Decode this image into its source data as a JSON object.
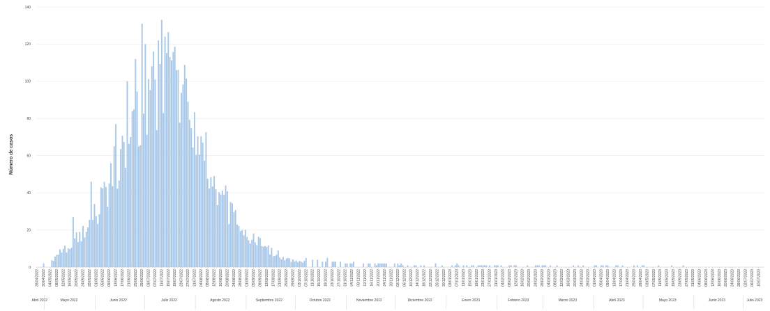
{
  "chart_data": {
    "type": "bar",
    "title": "",
    "xlabel": "",
    "ylabel": "Número de casos",
    "ylim": [
      0,
      140
    ],
    "yticks": [
      0,
      20,
      40,
      60,
      80,
      100,
      120,
      140
    ],
    "grid": true,
    "legend": "none",
    "bar_color": "#a9c8e8",
    "x_start": "2022-04-26",
    "x_end": "2023-07-13",
    "date_tick_labels": [
      "26/04/2022",
      "30/04/2022",
      "04/05/2022",
      "08/05/2022",
      "12/05/2022",
      "16/05/2022",
      "20/05/2022",
      "24/05/2022",
      "28/05/2022",
      "01/06/2022",
      "05/06/2022",
      "09/06/2022",
      "13/06/2022",
      "17/06/2022",
      "21/06/2022",
      "25/06/2022",
      "29/06/2022",
      "03/07/2022",
      "07/07/2022",
      "11/07/2022",
      "15/07/2022",
      "19/07/2022",
      "23/07/2022",
      "27/07/2022",
      "31/07/2022",
      "04/08/2022",
      "08/08/2022",
      "12/08/2022",
      "16/08/2022",
      "20/08/2022",
      "24/08/2022",
      "28/08/2022",
      "01/09/2022",
      "05/09/2022",
      "09/09/2022",
      "13/09/2022",
      "17/09/2022",
      "21/09/2022",
      "25/09/2022",
      "29/09/2022",
      "03/10/2022",
      "07/10/2022",
      "11/10/2022",
      "15/10/2022",
      "19/10/2022",
      "23/10/2022",
      "27/10/2022",
      "31/10/2022",
      "04/11/2022",
      "08/11/2022",
      "12/11/2022",
      "16/11/2022",
      "20/11/2022",
      "24/11/2022",
      "28/11/2022",
      "02/12/2022",
      "06/12/2022",
      "10/12/2022",
      "14/12/2022",
      "18/12/2022",
      "22/12/2022",
      "26/12/2022",
      "30/12/2022",
      "03/01/2023",
      "07/01/2023",
      "11/01/2023",
      "15/01/2023",
      "19/01/2023",
      "23/01/2023",
      "27/01/2023",
      "31/01/2023",
      "04/02/2023",
      "08/02/2023",
      "12/02/2023",
      "16/02/2023",
      "20/02/2023",
      "24/02/2023",
      "28/02/2023",
      "04/03/2023",
      "08/03/2023",
      "12/03/2023",
      "16/03/2023",
      "20/03/2023",
      "24/03/2023",
      "28/03/2023",
      "01/04/2023",
      "05/04/2023",
      "09/04/2023",
      "13/04/2023",
      "17/04/2023",
      "21/04/2023",
      "25/04/2023",
      "29/04/2023",
      "03/05/2023",
      "07/05/2023",
      "11/05/2023",
      "15/05/2023",
      "19/05/2023",
      "23/05/2023",
      "27/05/2023",
      "31/05/2023",
      "04/06/2023",
      "08/06/2023",
      "12/06/2023",
      "16/06/2023",
      "20/06/2023",
      "24/06/2023",
      "28/06/2023",
      "02/07/2023",
      "06/07/2023",
      "10/07/2023"
    ],
    "month_labels": [
      {
        "label": "Abril 2022",
        "date": "2022-04-28"
      },
      {
        "label": "Mayo 2022",
        "date": "2022-05-16"
      },
      {
        "label": "Junio 2022",
        "date": "2022-06-15"
      },
      {
        "label": "Julio 2022",
        "date": "2022-07-16"
      },
      {
        "label": "Agosto 2022",
        "date": "2022-08-16"
      },
      {
        "label": "Septiembre 2022",
        "date": "2022-09-15"
      },
      {
        "label": "Octubre 2022",
        "date": "2022-10-16"
      },
      {
        "label": "Noviembre 2022",
        "date": "2022-11-15"
      },
      {
        "label": "Diciembre 2022",
        "date": "2022-12-16"
      },
      {
        "label": "Enero 2023",
        "date": "2023-01-16"
      },
      {
        "label": "Febrero 2023",
        "date": "2023-02-14"
      },
      {
        "label": "Marzo 2023",
        "date": "2023-03-16"
      },
      {
        "label": "Abril 2023",
        "date": "2023-04-15"
      },
      {
        "label": "Mayo 2023",
        "date": "2023-05-16"
      },
      {
        "label": "Junio 2023",
        "date": "2023-06-15"
      },
      {
        "label": "Julio 2023",
        "date": "2023-07-08"
      }
    ],
    "profile_points": [
      {
        "date": "2022-04-26",
        "y": 0
      },
      {
        "date": "2022-05-03",
        "y": 2
      },
      {
        "date": "2022-05-10",
        "y": 8
      },
      {
        "date": "2022-05-17",
        "y": 13
      },
      {
        "date": "2022-05-24",
        "y": 18
      },
      {
        "date": "2022-05-31",
        "y": 28
      },
      {
        "date": "2022-06-07",
        "y": 40
      },
      {
        "date": "2022-06-14",
        "y": 58
      },
      {
        "date": "2022-06-21",
        "y": 75
      },
      {
        "date": "2022-06-28",
        "y": 88
      },
      {
        "date": "2022-07-02",
        "y": 98
      },
      {
        "date": "2022-07-06",
        "y": 104
      },
      {
        "date": "2022-07-10",
        "y": 100
      },
      {
        "date": "2022-07-14",
        "y": 102
      },
      {
        "date": "2022-07-18",
        "y": 105
      },
      {
        "date": "2022-07-22",
        "y": 98
      },
      {
        "date": "2022-07-26",
        "y": 90
      },
      {
        "date": "2022-08-02",
        "y": 72
      },
      {
        "date": "2022-08-09",
        "y": 55
      },
      {
        "date": "2022-08-16",
        "y": 40
      },
      {
        "date": "2022-08-23",
        "y": 28
      },
      {
        "date": "2022-08-30",
        "y": 20
      },
      {
        "date": "2022-09-06",
        "y": 14
      },
      {
        "date": "2022-09-13",
        "y": 10
      },
      {
        "date": "2022-09-20",
        "y": 6
      },
      {
        "date": "2022-09-27",
        "y": 4
      },
      {
        "date": "2022-10-15",
        "y": 2
      },
      {
        "date": "2022-11-15",
        "y": 1.2
      },
      {
        "date": "2022-12-15",
        "y": 0.8
      },
      {
        "date": "2023-01-15",
        "y": 0.9
      },
      {
        "date": "2023-02-15",
        "y": 0.5
      },
      {
        "date": "2023-03-15",
        "y": 0.4
      },
      {
        "date": "2023-05-15",
        "y": 0.3
      },
      {
        "date": "2023-07-13",
        "y": 0.2
      }
    ],
    "spikes": [
      {
        "date": "2022-06-29",
        "y": 131
      },
      {
        "date": "2022-07-01",
        "y": 120
      },
      {
        "date": "2022-07-06",
        "y": 116
      },
      {
        "date": "2022-07-09",
        "y": 122
      },
      {
        "date": "2022-07-11",
        "y": 133
      },
      {
        "date": "2022-07-13",
        "y": 124
      },
      {
        "date": "2022-07-16",
        "y": 113
      },
      {
        "date": "2022-06-25",
        "y": 112
      },
      {
        "date": "2022-06-20",
        "y": 100
      },
      {
        "date": "2022-07-20",
        "y": 106
      },
      {
        "date": "2022-07-27",
        "y": 89
      },
      {
        "date": "2022-06-13",
        "y": 77
      },
      {
        "date": "2022-08-05",
        "y": 67
      },
      {
        "date": "2022-08-12",
        "y": 49
      },
      {
        "date": "2022-08-19",
        "y": 44
      },
      {
        "date": "2022-05-29",
        "y": 46
      },
      {
        "date": "2022-06-04",
        "y": 43
      },
      {
        "date": "2022-05-18",
        "y": 27
      },
      {
        "date": "2022-08-26",
        "y": 23
      },
      {
        "date": "2022-10-20",
        "y": 5
      },
      {
        "date": "2022-09-20",
        "y": 9
      }
    ]
  }
}
